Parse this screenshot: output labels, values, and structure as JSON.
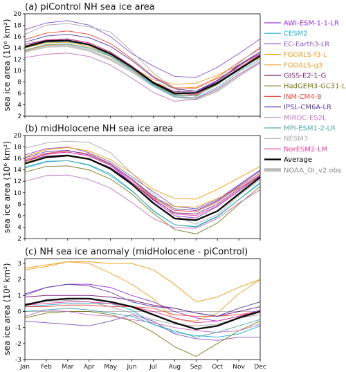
{
  "months": [
    "Jan",
    "Feb",
    "Mar",
    "Apr",
    "May",
    "Jun",
    "Jul",
    "Aug",
    "Sep",
    "Oct",
    "Nov",
    "Dec"
  ],
  "legend": [
    {
      "name": "AWI-ESM-1-1-LR",
      "color": "#9B30E0"
    },
    {
      "name": "CESM2",
      "color": "#1FB5D9"
    },
    {
      "name": "EC-Earth3-LR",
      "color": "#8A57C8"
    },
    {
      "name": "FGOALS-f3-L",
      "color": "#F39C12"
    },
    {
      "name": "FGOALS-g3",
      "color": "#F0A030"
    },
    {
      "name": "GISS-E2-1-G",
      "color": "#7A1F7A"
    },
    {
      "name": "HadGEM3-GC31-LL",
      "color": "#7B7A1E"
    },
    {
      "name": "INM-CM4-8",
      "color": "#E74C3C"
    },
    {
      "name": "IPSL-CM6A-LR",
      "color": "#5A3FA8"
    },
    {
      "name": "MIROC-ES2L",
      "color": "#C574C5"
    },
    {
      "name": "MPI-ESM1-2-LR",
      "color": "#4FA6A6"
    },
    {
      "name": "NESM3",
      "color": "#AAAAAA"
    },
    {
      "name": "NorESM2-LM",
      "color": "#E8409A"
    },
    {
      "name": "Average",
      "color": "#000000"
    },
    {
      "name": "NOAA_OI_v2 obs",
      "color": "#BBBBBB"
    }
  ],
  "chart_data": [
    {
      "type": "line",
      "title": "(a) piControl NH sea ice area",
      "ylabel": "sea ice area (10⁶ km²)",
      "ylim": [
        2,
        20
      ],
      "yticks": [
        2,
        4,
        6,
        8,
        10,
        12,
        14,
        16,
        18,
        20
      ],
      "series": [
        {
          "name": "AWI-ESM-1-1-LR",
          "color": "#9B30E0",
          "values": [
            14.3,
            15.3,
            15.4,
            14.6,
            13.0,
            10.7,
            8.0,
            6.1,
            6.1,
            8.2,
            10.9,
            13.0
          ]
        },
        {
          "name": "CESM2",
          "color": "#1FB5D9",
          "values": [
            14.0,
            15.0,
            15.1,
            14.3,
            12.7,
            10.3,
            7.6,
            5.7,
            5.6,
            7.6,
            10.2,
            12.7
          ]
        },
        {
          "name": "EC-Earth3-LR",
          "color": "#8A57C8",
          "values": [
            17.2,
            18.4,
            18.8,
            18.0,
            16.0,
            13.0,
            10.8,
            9.0,
            8.8,
            10.6,
            13.0,
            15.6
          ]
        },
        {
          "name": "FGOALS-f3-L",
          "color": "#F39C12",
          "values": [
            13.5,
            14.5,
            14.7,
            14.0,
            12.5,
            10.2,
            7.9,
            6.9,
            7.1,
            8.6,
            10.5,
            12.3
          ]
        },
        {
          "name": "FGOALS-g3",
          "color": "#F0A030",
          "values": [
            14.0,
            14.9,
            15.0,
            14.3,
            12.9,
            10.7,
            8.4,
            7.6,
            7.8,
            9.2,
            11.0,
            12.8
          ]
        },
        {
          "name": "GISS-E2-1-G",
          "color": "#7A1F7A",
          "values": [
            14.6,
            15.4,
            15.6,
            14.9,
            13.3,
            10.8,
            8.0,
            6.3,
            6.4,
            8.3,
            11.0,
            13.3
          ]
        },
        {
          "name": "HadGEM3-GC31-LL",
          "color": "#7B7A1E",
          "values": [
            14.0,
            15.1,
            15.4,
            14.6,
            13.0,
            10.6,
            7.7,
            5.8,
            5.6,
            7.6,
            10.3,
            12.7
          ]
        },
        {
          "name": "INM-CM4-8",
          "color": "#E74C3C",
          "values": [
            15.5,
            16.6,
            17.0,
            16.4,
            14.8,
            12.1,
            9.0,
            7.0,
            6.9,
            8.8,
            11.5,
            13.9
          ]
        },
        {
          "name": "IPSL-CM6A-LR",
          "color": "#5A3FA8",
          "values": [
            15.0,
            16.1,
            16.4,
            15.8,
            14.3,
            11.8,
            8.8,
            6.8,
            6.4,
            8.0,
            10.8,
            13.3
          ]
        },
        {
          "name": "MIROC-ES2L",
          "color": "#C574C5",
          "values": [
            12.3,
            12.9,
            13.1,
            12.5,
            11.0,
            8.7,
            6.2,
            4.6,
            5.0,
            6.8,
            9.4,
            11.3
          ]
        },
        {
          "name": "MPI-ESM1-2-LR",
          "color": "#4FA6A6",
          "values": [
            13.6,
            14.6,
            14.7,
            14.0,
            12.6,
            10.2,
            7.4,
            5.4,
            5.2,
            7.1,
            9.8,
            12.1
          ]
        },
        {
          "name": "NESM3",
          "color": "#AAAAAA",
          "values": [
            16.4,
            18.0,
            18.3,
            17.7,
            16.8,
            13.4,
            9.6,
            6.8,
            5.4,
            7.9,
            11.3,
            14.2
          ]
        },
        {
          "name": "NorESM2-LM",
          "color": "#E8409A",
          "values": [
            14.3,
            15.4,
            15.6,
            14.9,
            13.3,
            10.8,
            8.0,
            6.0,
            5.8,
            7.8,
            10.5,
            12.9
          ]
        },
        {
          "name": "Average",
          "color": "#000000",
          "values": [
            14.2,
            15.2,
            15.3,
            14.6,
            13.0,
            10.6,
            7.9,
            6.0,
            6.1,
            7.8,
            10.2,
            12.6
          ]
        },
        {
          "name": "NOAA_OI_v2 obs",
          "color": "#BBBBBB",
          "values": [
            13.4,
            14.3,
            14.4,
            13.6,
            12.0,
            9.9,
            7.4,
            5.5,
            5.0,
            6.5,
            9.1,
            11.6
          ]
        }
      ]
    },
    {
      "type": "line",
      "title": "(b) midHolocene NH sea ice area",
      "ylabel": "sea ice area (10⁶ km²)",
      "ylim": [
        2,
        20
      ],
      "yticks": [
        2,
        4,
        6,
        8,
        10,
        12,
        14,
        16,
        18,
        20
      ],
      "series": [
        {
          "name": "AWI-ESM-1-1-LR",
          "color": "#9B30E0",
          "values": [
            15.5,
            16.8,
            17.1,
            16.4,
            14.8,
            11.8,
            8.7,
            6.0,
            5.6,
            7.6,
            10.3,
            12.9
          ]
        },
        {
          "name": "CESM2",
          "color": "#1FB5D9",
          "values": [
            14.3,
            15.4,
            15.6,
            14.9,
            13.3,
            10.4,
            6.8,
            4.4,
            4.1,
            5.9,
            8.8,
            11.8
          ]
        },
        {
          "name": "EC-Earth3-LR",
          "color": "#8A57C8",
          "values": [
            16.6,
            17.7,
            18.0,
            17.0,
            15.4,
            12.8,
            10.2,
            7.6,
            7.2,
            8.8,
            11.4,
            14.0
          ]
        },
        {
          "name": "FGOALS-f3-L",
          "color": "#F39C12",
          "values": [
            16.3,
            17.5,
            17.9,
            17.3,
            15.8,
            13.4,
            10.6,
            9.0,
            8.9,
            10.6,
            12.6,
            14.6
          ]
        },
        {
          "name": "FGOALS-g3",
          "color": "#F0A030",
          "values": [
            15.4,
            16.2,
            16.4,
            15.8,
            14.2,
            11.8,
            9.0,
            7.6,
            7.5,
            9.0,
            10.8,
            12.6
          ]
        },
        {
          "name": "GISS-E2-1-G",
          "color": "#7A1F7A",
          "values": [
            15.6,
            16.4,
            16.6,
            15.9,
            14.4,
            11.8,
            8.8,
            6.5,
            6.3,
            8.0,
            10.7,
            13.1
          ]
        },
        {
          "name": "HadGEM3-GC31-LL",
          "color": "#7B7A1E",
          "values": [
            13.6,
            14.6,
            14.7,
            14.0,
            12.4,
            9.8,
            6.4,
            3.6,
            2.8,
            4.7,
            8.0,
            11.1
          ]
        },
        {
          "name": "INM-CM4-8",
          "color": "#E74C3C",
          "values": [
            15.8,
            16.9,
            17.3,
            16.8,
            15.1,
            12.4,
            9.2,
            6.9,
            6.7,
            8.4,
            11.0,
            13.4
          ]
        },
        {
          "name": "IPSL-CM6A-LR",
          "color": "#5A3FA8",
          "values": [
            16.1,
            17.2,
            17.4,
            16.6,
            15.0,
            12.4,
            9.4,
            7.2,
            6.9,
            8.6,
            11.2,
            13.8
          ]
        },
        {
          "name": "MIROC-ES2L",
          "color": "#C574C5",
          "values": [
            12.0,
            13.0,
            13.1,
            12.3,
            10.8,
            8.3,
            5.5,
            3.9,
            3.8,
            5.5,
            8.2,
            10.5
          ]
        },
        {
          "name": "MPI-ESM1-2-LR",
          "color": "#4FA6A6",
          "values": [
            14.5,
            15.5,
            15.6,
            14.8,
            13.0,
            10.3,
            6.9,
            4.4,
            4.0,
            5.8,
            8.8,
            11.6
          ]
        },
        {
          "name": "NESM3",
          "color": "#AAAAAA",
          "values": [
            17.8,
            18.7,
            19.0,
            18.8,
            17.0,
            13.4,
            9.8,
            6.0,
            4.5,
            6.2,
            9.5,
            12.3
          ]
        },
        {
          "name": "NorESM2-LM",
          "color": "#E8409A",
          "values": [
            15.6,
            16.7,
            17.1,
            16.4,
            14.8,
            12.2,
            9.0,
            6.3,
            6.0,
            7.7,
            10.4,
            13.0
          ]
        },
        {
          "name": "Average",
          "color": "#000000",
          "values": [
            15.1,
            16.2,
            16.5,
            15.9,
            14.2,
            11.5,
            8.2,
            5.5,
            5.2,
            6.8,
            9.8,
            12.7
          ]
        }
      ]
    },
    {
      "type": "line",
      "title": "(c) NH sea ice anomaly (midHolocene - piControl)",
      "ylabel": "sea ice area (10⁶ km²)",
      "ylim": [
        -3,
        3.3
      ],
      "yticks": [
        -3,
        -2,
        -1,
        0,
        1,
        2,
        3
      ],
      "series": [
        {
          "name": "AWI-ESM-1-1-LR",
          "color": "#9B30E0",
          "values": [
            1.0,
            1.5,
            1.7,
            1.7,
            1.5,
            1.0,
            0.6,
            0.0,
            -0.4,
            -0.6,
            -0.3,
            0.1
          ]
        },
        {
          "name": "CESM2",
          "color": "#1FB5D9",
          "values": [
            0.3,
            0.4,
            0.5,
            0.5,
            0.5,
            0.1,
            -0.8,
            -1.3,
            -1.5,
            -1.6,
            -1.4,
            -0.9
          ]
        },
        {
          "name": "EC-Earth3-LR",
          "color": "#8A57C8",
          "values": [
            -0.6,
            -0.7,
            -0.8,
            -0.9,
            -0.6,
            -0.2,
            -0.6,
            -1.4,
            -1.7,
            -1.8,
            -1.6,
            -1.6
          ]
        },
        {
          "name": "FGOALS-f3-L",
          "color": "#F39C12",
          "values": [
            2.7,
            2.9,
            3.1,
            3.1,
            3.0,
            3.0,
            2.6,
            1.7,
            0.6,
            0.9,
            1.5,
            2.0
          ]
        },
        {
          "name": "FGOALS-g3",
          "color": "#F0A030",
          "values": [
            2.6,
            2.8,
            3.1,
            3.0,
            2.4,
            1.7,
            0.8,
            -0.5,
            -0.6,
            -0.1,
            1.1,
            2.0
          ]
        },
        {
          "name": "GISS-E2-1-G",
          "color": "#7A1F7A",
          "values": [
            0.9,
            1.0,
            1.0,
            1.0,
            0.9,
            0.7,
            0.4,
            0.2,
            -0.1,
            -0.3,
            0.0,
            0.3
          ]
        },
        {
          "name": "HadGEM3-GC31-LL",
          "color": "#7B7A1E",
          "values": [
            -0.4,
            -0.1,
            0.0,
            0.0,
            -0.2,
            -0.6,
            -1.3,
            -2.2,
            -2.8,
            -2.0,
            -1.2,
            -0.6
          ]
        },
        {
          "name": "INM-CM4-8",
          "color": "#E74C3C",
          "values": [
            0.3,
            0.3,
            0.4,
            0.4,
            0.3,
            0.3,
            0.2,
            -0.2,
            -0.3,
            -0.3,
            -0.2,
            0.0
          ]
        },
        {
          "name": "IPSL-CM6A-LR",
          "color": "#5A3FA8",
          "values": [
            1.1,
            1.5,
            1.7,
            1.6,
            1.2,
            0.6,
            0.3,
            0.2,
            -0.1,
            -0.3,
            0.2,
            0.6
          ]
        },
        {
          "name": "MIROC-ES2L",
          "color": "#C574C5",
          "values": [
            -0.3,
            0.1,
            0.0,
            -0.2,
            -0.3,
            -0.5,
            -0.7,
            -1.0,
            -1.2,
            -1.3,
            -1.2,
            -0.8
          ]
        },
        {
          "name": "MPI-ESM1-2-LR",
          "color": "#4FA6A6",
          "values": [
            0.0,
            0.1,
            0.2,
            0.1,
            -0.1,
            -0.3,
            -0.8,
            -1.2,
            -1.6,
            -1.3,
            -0.9,
            -0.5
          ]
        },
        {
          "name": "NESM3",
          "color": "#AAAAAA",
          "values": [
            0.5,
            0.6,
            0.7,
            0.6,
            0.3,
            -0.1,
            -0.5,
            -0.8,
            -0.9,
            -0.8,
            -0.4,
            -0.2
          ]
        },
        {
          "name": "NorESM2-LM",
          "color": "#E8409A",
          "values": [
            0.4,
            0.5,
            0.6,
            0.6,
            0.5,
            0.3,
            0.0,
            -0.4,
            -0.7,
            -0.6,
            -0.3,
            0.0
          ]
        },
        {
          "name": "Average",
          "color": "#000000",
          "values": [
            0.4,
            0.7,
            0.8,
            0.8,
            0.6,
            0.3,
            -0.2,
            -0.7,
            -1.1,
            -0.9,
            -0.4,
            0.0
          ]
        }
      ]
    }
  ]
}
